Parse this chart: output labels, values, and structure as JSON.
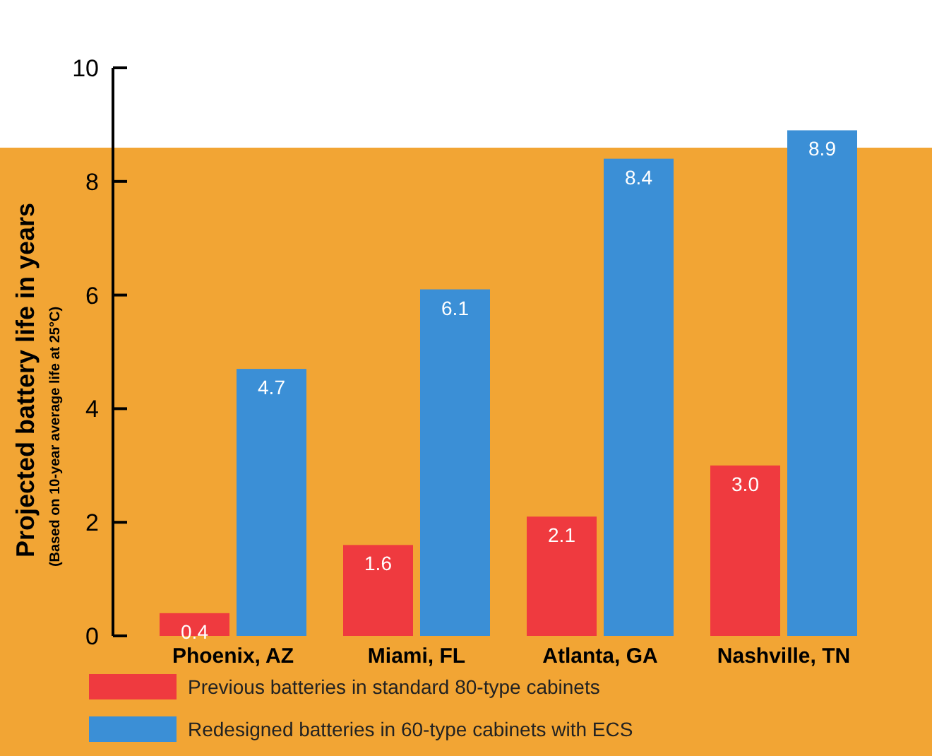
{
  "chart_data": {
    "type": "bar",
    "ylabel": "Projected battery life in years",
    "annotations": [
      "(Based on 10-year average life at 25°C)"
    ],
    "categories": [
      "Phoenix, AZ",
      "Miami, FL",
      "Atlanta, GA",
      "Nashville, TN"
    ],
    "series": [
      {
        "name": "Previous batteries in standard 80-type cabinets",
        "color": "#ef3a3f",
        "values": [
          0.4,
          1.6,
          2.1,
          3.0
        ],
        "value_labels": [
          "0.4",
          "1.6",
          "2.1",
          "3.0"
        ]
      },
      {
        "name": "Redesigned batteries in 60-type cabinets with ECS",
        "color": "#3b8fd6",
        "values": [
          4.7,
          6.1,
          8.4,
          8.9
        ],
        "value_labels": [
          "4.7",
          "6.1",
          "8.4",
          "8.9"
        ]
      }
    ],
    "ylim": [
      0,
      10
    ],
    "yticks": [
      0,
      2,
      4,
      6,
      8,
      10
    ],
    "grid": false,
    "legend": "bottom"
  }
}
